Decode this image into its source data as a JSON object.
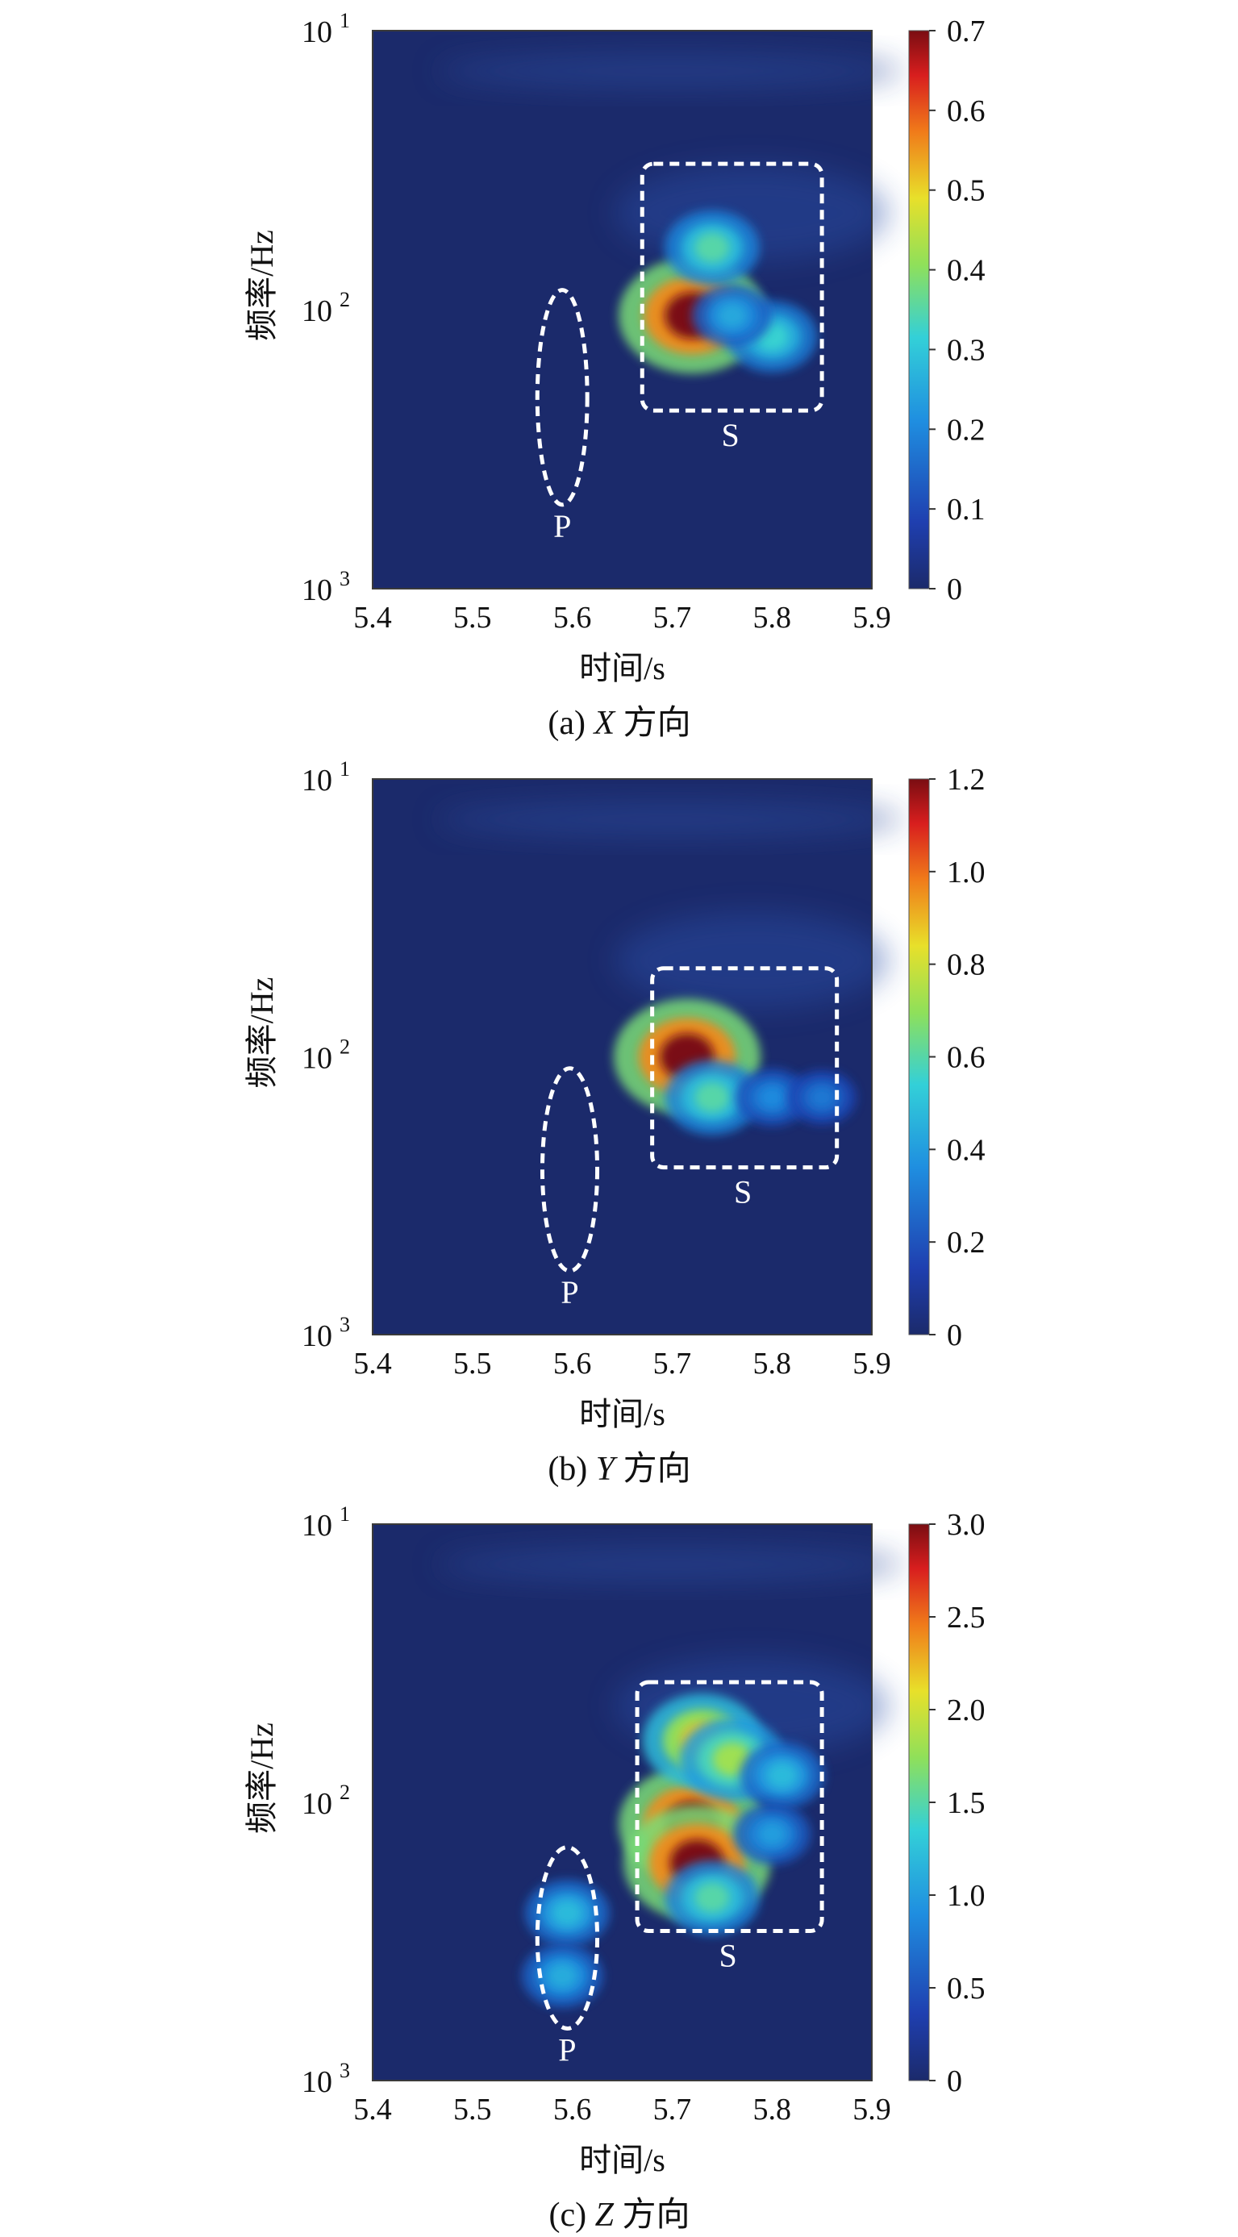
{
  "chart_data": [
    {
      "type": "heatmap",
      "caption": "(a) X 方向",
      "caption_prefix": "(a)",
      "caption_axis": "X",
      "caption_suffix": "方向",
      "xlabel": "时间/s",
      "ylabel": "频率/Hz",
      "x_ticks": [
        "5.4",
        "5.5",
        "5.6",
        "5.7",
        "5.8",
        "5.9"
      ],
      "xlim": [
        5.4,
        5.9
      ],
      "y_scale": "log",
      "y_ticks": [
        {
          "base": "10",
          "exp": "1"
        },
        {
          "base": "10",
          "exp": "2"
        },
        {
          "base": "10",
          "exp": "3"
        }
      ],
      "y_inverted": true,
      "colorbar_ticks": [
        "0",
        "0.1",
        "0.2",
        "0.3",
        "0.4",
        "0.5",
        "0.6",
        "0.7"
      ],
      "colorbar_max": 0.7,
      "regions": [
        {
          "label": "P",
          "shape": "ellipse",
          "x": [
            5.565,
            5.615
          ],
          "y": [
            85,
            500
          ]
        },
        {
          "label": "S",
          "shape": "rectangle",
          "x": [
            5.67,
            5.85
          ],
          "y": [
            30,
            230
          ]
        }
      ],
      "hotspots": [
        {
          "t": 5.72,
          "f": 105,
          "value": 0.7
        },
        {
          "t": 5.74,
          "f": 60,
          "value": 0.35
        },
        {
          "t": 5.8,
          "f": 125,
          "value": 0.32
        },
        {
          "t": 5.76,
          "f": 105,
          "value": 0.25
        }
      ]
    },
    {
      "type": "heatmap",
      "caption": "(b) Y 方向",
      "caption_prefix": "(b)",
      "caption_axis": "Y",
      "caption_suffix": "方向",
      "xlabel": "时间/s",
      "ylabel": "频率/Hz",
      "x_ticks": [
        "5.4",
        "5.5",
        "5.6",
        "5.7",
        "5.8",
        "5.9"
      ],
      "xlim": [
        5.4,
        5.9
      ],
      "y_scale": "log",
      "y_ticks": [
        {
          "base": "10",
          "exp": "1"
        },
        {
          "base": "10",
          "exp": "2"
        },
        {
          "base": "10",
          "exp": "3"
        }
      ],
      "y_inverted": true,
      "colorbar_ticks": [
        "0",
        "0.2",
        "0.4",
        "0.6",
        "0.8",
        "1.0",
        "1.2"
      ],
      "colorbar_max": 1.2,
      "regions": [
        {
          "label": "P",
          "shape": "ellipse",
          "x": [
            5.57,
            5.625
          ],
          "y": [
            110,
            590
          ]
        },
        {
          "label": "S",
          "shape": "rectangle",
          "x": [
            5.68,
            5.865
          ],
          "y": [
            48,
            250
          ]
        }
      ],
      "hotspots": [
        {
          "t": 5.715,
          "f": 100,
          "value": 1.2
        },
        {
          "t": 5.74,
          "f": 140,
          "value": 0.6
        },
        {
          "t": 5.8,
          "f": 140,
          "value": 0.35
        },
        {
          "t": 5.85,
          "f": 140,
          "value": 0.3
        }
      ]
    },
    {
      "type": "heatmap",
      "caption": "(c) Z 方向",
      "caption_prefix": "(c)",
      "caption_axis": "Z",
      "caption_suffix": "方向",
      "xlabel": "时间/s",
      "ylabel": "频率/Hz",
      "x_ticks": [
        "5.4",
        "5.5",
        "5.6",
        "5.7",
        "5.8",
        "5.9"
      ],
      "xlim": [
        5.4,
        5.9
      ],
      "y_scale": "log",
      "y_ticks": [
        {
          "base": "10",
          "exp": "1"
        },
        {
          "base": "10",
          "exp": "2"
        },
        {
          "base": "10",
          "exp": "3"
        }
      ],
      "y_inverted": true,
      "colorbar_ticks": [
        "0",
        "0.5",
        "1.0",
        "1.5",
        "2.0",
        "2.5",
        "3.0"
      ],
      "colorbar_max": 3.0,
      "regions": [
        {
          "label": "P",
          "shape": "ellipse",
          "x": [
            5.565,
            5.625
          ],
          "y": [
            145,
            650
          ]
        },
        {
          "label": "S",
          "shape": "rectangle",
          "x": [
            5.665,
            5.85
          ],
          "y": [
            37,
            290
          ]
        }
      ],
      "hotspots": [
        {
          "t": 5.72,
          "f": 120,
          "value": 3.0
        },
        {
          "t": 5.725,
          "f": 165,
          "value": 3.0
        },
        {
          "t": 5.73,
          "f": 60,
          "value": 2.2
        },
        {
          "t": 5.76,
          "f": 70,
          "value": 1.8
        },
        {
          "t": 5.81,
          "f": 80,
          "value": 1.2
        },
        {
          "t": 5.595,
          "f": 250,
          "value": 1.2
        },
        {
          "t": 5.59,
          "f": 420,
          "value": 1.1
        },
        {
          "t": 5.74,
          "f": 220,
          "value": 1.5
        },
        {
          "t": 5.8,
          "f": 130,
          "value": 1.0
        }
      ]
    }
  ]
}
